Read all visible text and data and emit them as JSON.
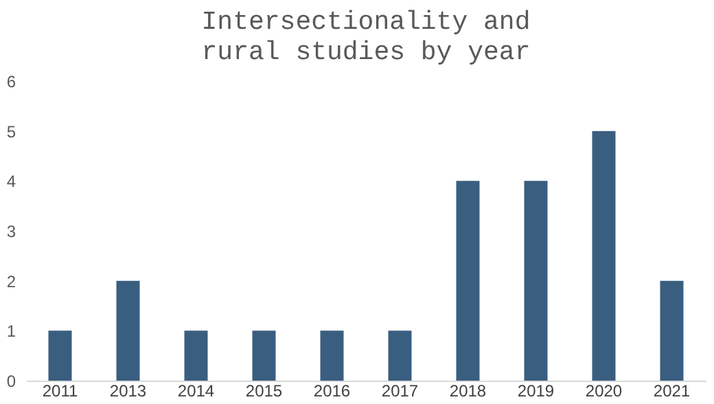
{
  "chart_data": {
    "type": "bar",
    "title": "Intersectionality and rural studies by year",
    "categories": [
      "2011",
      "2013",
      "2014",
      "2015",
      "2016",
      "2017",
      "2018",
      "2019",
      "2020",
      "2021"
    ],
    "values": [
      1,
      2,
      1,
      1,
      1,
      1,
      4,
      4,
      5,
      2
    ],
    "color": "#3a5e80",
    "ylim": [
      0,
      6
    ],
    "yticks": [
      0,
      1,
      2,
      3,
      4,
      5,
      6
    ],
    "grid": false,
    "legend": false
  }
}
